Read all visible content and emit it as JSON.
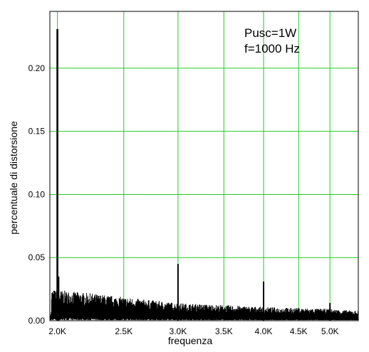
{
  "chart_data": {
    "type": "line",
    "xlabel": "frequenza",
    "ylabel": "percentuale di distorsione",
    "x_scale": "log",
    "xlim": [
      1950,
      5500
    ],
    "ylim": [
      0,
      0.245
    ],
    "grid": true,
    "x_ticks": [
      {
        "value": 2000,
        "label": "2.0K"
      },
      {
        "value": 2500,
        "label": "2.5K"
      },
      {
        "value": 3000,
        "label": "3.0K"
      },
      {
        "value": 3500,
        "label": "3.5K"
      },
      {
        "value": 4000,
        "label": "4.0K"
      },
      {
        "value": 4500,
        "label": "4.5K"
      },
      {
        "value": 5000,
        "label": "5.0K"
      }
    ],
    "y_ticks": [
      {
        "value": 0.0,
        "label": "0.00"
      },
      {
        "value": 0.05,
        "label": "0.05"
      },
      {
        "value": 0.1,
        "label": "0.10"
      },
      {
        "value": 0.15,
        "label": "0.15"
      },
      {
        "value": 0.2,
        "label": "0.20"
      }
    ],
    "annotations": [
      "Pusc=1W",
      "f=1000 Hz"
    ],
    "colors": {
      "grid": "#22cc22",
      "trace": "#000000",
      "axis": "#000000"
    },
    "series": [
      {
        "noise_floor": [
          [
            1960,
            0.016
          ],
          [
            2100,
            0.015
          ],
          [
            2500,
            0.012
          ],
          [
            3000,
            0.009
          ],
          [
            3500,
            0.008
          ],
          [
            4000,
            0.007
          ],
          [
            5000,
            0.006
          ],
          [
            5500,
            0.005
          ]
        ],
        "peaks": [
          {
            "x": 2000,
            "y": 0.231
          },
          {
            "x": 3000,
            "y": 0.045
          },
          {
            "x": 4000,
            "y": 0.031
          },
          {
            "x": 5000,
            "y": 0.014
          }
        ]
      }
    ]
  }
}
